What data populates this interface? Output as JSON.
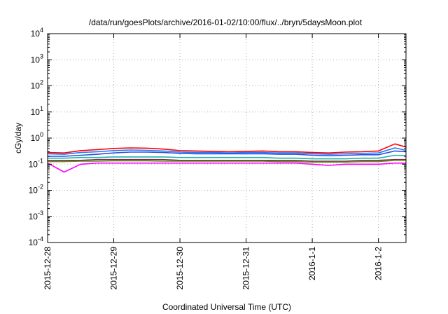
{
  "chart_data": {
    "type": "line",
    "title": "/data/run/goesPlots/archive/2016-01-02/10:00/flux/../bryn/5daysMoon.plot",
    "xlabel": "Coordinated Universal Time (UTC)",
    "ylabel": "cGy/day",
    "yscale": "log",
    "ylim": [
      0.0001,
      10000
    ],
    "y_ticks": [
      {
        "base": "10",
        "exp": "-4",
        "value": 0.0001
      },
      {
        "base": "10",
        "exp": "-3",
        "value": 0.001
      },
      {
        "base": "10",
        "exp": "-2",
        "value": 0.01
      },
      {
        "base": "10",
        "exp": "-1",
        "value": 0.1
      },
      {
        "base": "10",
        "exp": "0",
        "value": 1
      },
      {
        "base": "10",
        "exp": "1",
        "value": 10
      },
      {
        "base": "10",
        "exp": "2",
        "value": 100
      },
      {
        "base": "10",
        "exp": "3",
        "value": 1000
      },
      {
        "base": "10",
        "exp": "4",
        "value": 10000
      }
    ],
    "xlim": [
      "2015-12-28T00:00",
      "2016-01-02T10:00"
    ],
    "x_ticks": [
      {
        "label": "2015-12-28",
        "value": "2015-12-28T00:00"
      },
      {
        "label": "2015-12-29",
        "value": "2015-12-29T00:00"
      },
      {
        "label": "2015-12-30",
        "value": "2015-12-30T00:00"
      },
      {
        "label": "2015-12-31",
        "value": "2015-12-31T00:00"
      },
      {
        "label": "2016-1-1",
        "value": "2016-01-01T00:00"
      },
      {
        "label": "2016-1-2",
        "value": "2016-01-02T00:00"
      }
    ],
    "grid": true,
    "x": [
      "2015-12-28T00:00",
      "2015-12-28T06:00",
      "2015-12-28T12:00",
      "2015-12-28T18:00",
      "2015-12-29T00:00",
      "2015-12-29T06:00",
      "2015-12-29T12:00",
      "2015-12-29T18:00",
      "2015-12-30T00:00",
      "2015-12-30T06:00",
      "2015-12-30T12:00",
      "2015-12-30T18:00",
      "2015-12-31T00:00",
      "2015-12-31T06:00",
      "2015-12-31T12:00",
      "2015-12-31T18:00",
      "2016-01-01T00:00",
      "2016-01-01T06:00",
      "2016-01-01T12:00",
      "2016-01-01T18:00",
      "2016-01-02T00:00",
      "2016-01-02T06:00",
      "2016-01-02T10:00"
    ],
    "series": [
      {
        "color": "#ff0000",
        "values": [
          0.28,
          0.27,
          0.33,
          0.36,
          0.4,
          0.42,
          0.41,
          0.38,
          0.33,
          0.32,
          0.31,
          0.3,
          0.31,
          0.32,
          0.3,
          0.3,
          0.28,
          0.27,
          0.29,
          0.3,
          0.32,
          0.6,
          0.45
        ]
      },
      {
        "color": "#1f78ff",
        "values": [
          0.25,
          0.24,
          0.28,
          0.3,
          0.33,
          0.35,
          0.34,
          0.32,
          0.29,
          0.28,
          0.28,
          0.27,
          0.28,
          0.28,
          0.27,
          0.27,
          0.25,
          0.24,
          0.25,
          0.26,
          0.27,
          0.42,
          0.34
        ]
      },
      {
        "color": "#2b4fd6",
        "values": [
          0.2,
          0.2,
          0.22,
          0.24,
          0.27,
          0.29,
          0.29,
          0.28,
          0.26,
          0.25,
          0.25,
          0.25,
          0.25,
          0.25,
          0.24,
          0.24,
          0.22,
          0.21,
          0.22,
          0.23,
          0.23,
          0.32,
          0.3
        ]
      },
      {
        "color": "#20b2aa",
        "values": [
          0.17,
          0.17,
          0.18,
          0.18,
          0.19,
          0.19,
          0.19,
          0.19,
          0.18,
          0.18,
          0.18,
          0.18,
          0.18,
          0.18,
          0.17,
          0.17,
          0.16,
          0.16,
          0.16,
          0.17,
          0.17,
          0.22,
          0.21
        ]
      },
      {
        "color": "#7a2d4a",
        "values": [
          0.14,
          0.14,
          0.14,
          0.15,
          0.15,
          0.15,
          0.15,
          0.15,
          0.14,
          0.14,
          0.14,
          0.14,
          0.14,
          0.14,
          0.14,
          0.14,
          0.13,
          0.13,
          0.13,
          0.14,
          0.14,
          0.15,
          0.15
        ]
      },
      {
        "color": "#6b8e23",
        "values": [
          0.125,
          0.125,
          0.13,
          0.13,
          0.135,
          0.135,
          0.135,
          0.13,
          0.13,
          0.13,
          0.13,
          0.13,
          0.13,
          0.13,
          0.125,
          0.125,
          0.12,
          0.12,
          0.12,
          0.125,
          0.125,
          0.14,
          0.14
        ]
      },
      {
        "color": "#ff00ff",
        "values": [
          0.11,
          0.05,
          0.1,
          0.11,
          0.11,
          0.11,
          0.11,
          0.11,
          0.11,
          0.11,
          0.11,
          0.11,
          0.11,
          0.11,
          0.11,
          0.11,
          0.1,
          0.09,
          0.1,
          0.1,
          0.1,
          0.11,
          0.11
        ]
      }
    ]
  }
}
